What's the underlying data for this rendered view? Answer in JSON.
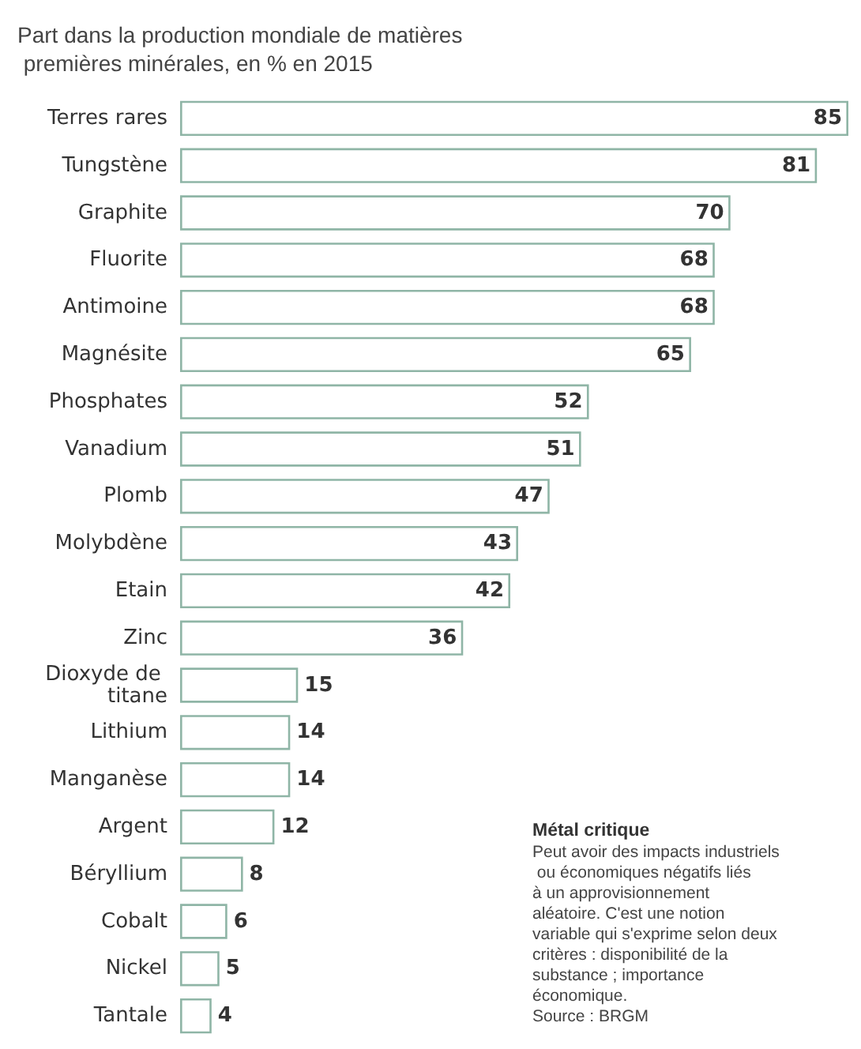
{
  "chart_data": {
    "type": "bar",
    "orientation": "horizontal",
    "title": "Part dans la production mondiale de matières premières minérales, en % en 2015",
    "categories": [
      "Terres rares",
      "Tungstène",
      "Graphite",
      "Fluorite",
      "Antimoine",
      "Magnésite",
      "Phosphates",
      "Vanadium",
      "Plomb",
      "Molybdène",
      "Etain",
      "Zinc",
      "Dioxyde de titane",
      "Lithium",
      "Manganèse",
      "Argent",
      "Béryllium",
      "Cobalt",
      "Nickel",
      "Tantale"
    ],
    "values": [
      85,
      81,
      70,
      68,
      68,
      65,
      52,
      51,
      47,
      43,
      42,
      36,
      15,
      14,
      14,
      12,
      8,
      6,
      5,
      4
    ],
    "color": "#ffffff",
    "data_labels": true,
    "annotations": [
      "Métal critique",
      "Peut avoir des impacts industriels ou économiques négatifs liés à un approvisionnement aléatoire. C'est une notion variable qui s'exprime selon deux critères : disponibilité de la substance ; importance économique.",
      "Source : BRGM"
    ]
  }
}
